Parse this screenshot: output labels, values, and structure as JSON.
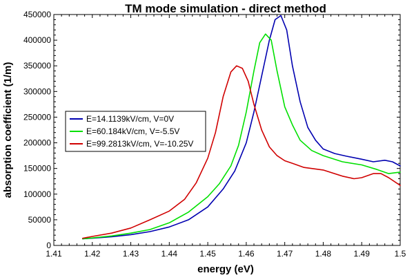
{
  "chart_data": {
    "type": "line",
    "title": "TM mode simulation - direct method",
    "xlabel": "energy (eV)",
    "ylabel": "absorption coefficient (1/m)",
    "xlim": [
      1.41,
      1.5
    ],
    "ylim": [
      0,
      450000
    ],
    "xticks": [
      1.41,
      1.42,
      1.43,
      1.44,
      1.45,
      1.46,
      1.47,
      1.48,
      1.49,
      1.5
    ],
    "xtick_labels": [
      "1.41",
      "1.42",
      "1.43",
      "1.44",
      "1.45",
      "1.46",
      "1.47",
      "1.48",
      "1.49",
      "1.5"
    ],
    "yticks": [
      0,
      50000,
      100000,
      150000,
      200000,
      250000,
      300000,
      350000,
      400000,
      450000
    ],
    "ytick_labels": [
      "0",
      "50000",
      "100000",
      "150000",
      "200000",
      "250000",
      "300000",
      "350000",
      "400000",
      "450000"
    ],
    "legend_position": "left-middle",
    "grid": false,
    "series": [
      {
        "name": "E=14.1139kV/cm, V=0V",
        "color": "#0000b0",
        "x": [
          1.4175,
          1.42,
          1.425,
          1.43,
          1.435,
          1.44,
          1.445,
          1.45,
          1.454,
          1.457,
          1.46,
          1.462,
          1.464,
          1.466,
          1.4675,
          1.469,
          1.4705,
          1.472,
          1.474,
          1.476,
          1.478,
          1.48,
          1.483,
          1.486,
          1.49,
          1.493,
          1.496,
          1.498,
          1.5
        ],
        "y": [
          13000,
          14000,
          17000,
          21000,
          27000,
          36000,
          50000,
          75000,
          110000,
          145000,
          200000,
          260000,
          330000,
          400000,
          440000,
          448000,
          420000,
          350000,
          280000,
          230000,
          205000,
          188000,
          179000,
          174000,
          168000,
          163000,
          166000,
          163000,
          155000
        ]
      },
      {
        "name": "E=60.184kV/cm, V=-5.5V",
        "color": "#00e000",
        "x": [
          1.4175,
          1.42,
          1.425,
          1.43,
          1.435,
          1.44,
          1.445,
          1.45,
          1.453,
          1.456,
          1.458,
          1.46,
          1.462,
          1.4635,
          1.465,
          1.4665,
          1.468,
          1.47,
          1.472,
          1.474,
          1.477,
          1.48,
          1.485,
          1.49,
          1.494,
          1.497,
          1.5
        ],
        "y": [
          13000,
          14500,
          18500,
          24000,
          31000,
          44000,
          65000,
          95000,
          120000,
          155000,
          195000,
          260000,
          340000,
          395000,
          412000,
          400000,
          340000,
          270000,
          235000,
          205000,
          185000,
          175000,
          163000,
          157000,
          148000,
          140000,
          143000
        ]
      },
      {
        "name": "E=99.2813kV/cm, V=-10.25V",
        "color": "#d00000",
        "x": [
          1.4175,
          1.42,
          1.425,
          1.43,
          1.435,
          1.44,
          1.444,
          1.447,
          1.45,
          1.452,
          1.454,
          1.456,
          1.4575,
          1.459,
          1.4605,
          1.462,
          1.464,
          1.466,
          1.468,
          1.47,
          1.472,
          1.475,
          1.48,
          1.485,
          1.488,
          1.49,
          1.493,
          1.495,
          1.497,
          1.5
        ],
        "y": [
          14000,
          17500,
          24000,
          34000,
          50000,
          67000,
          90000,
          122000,
          170000,
          220000,
          290000,
          338000,
          350000,
          345000,
          320000,
          275000,
          225000,
          192000,
          175000,
          165000,
          160000,
          152000,
          147000,
          135000,
          130000,
          132000,
          140000,
          140000,
          132000,
          117000
        ]
      }
    ]
  }
}
